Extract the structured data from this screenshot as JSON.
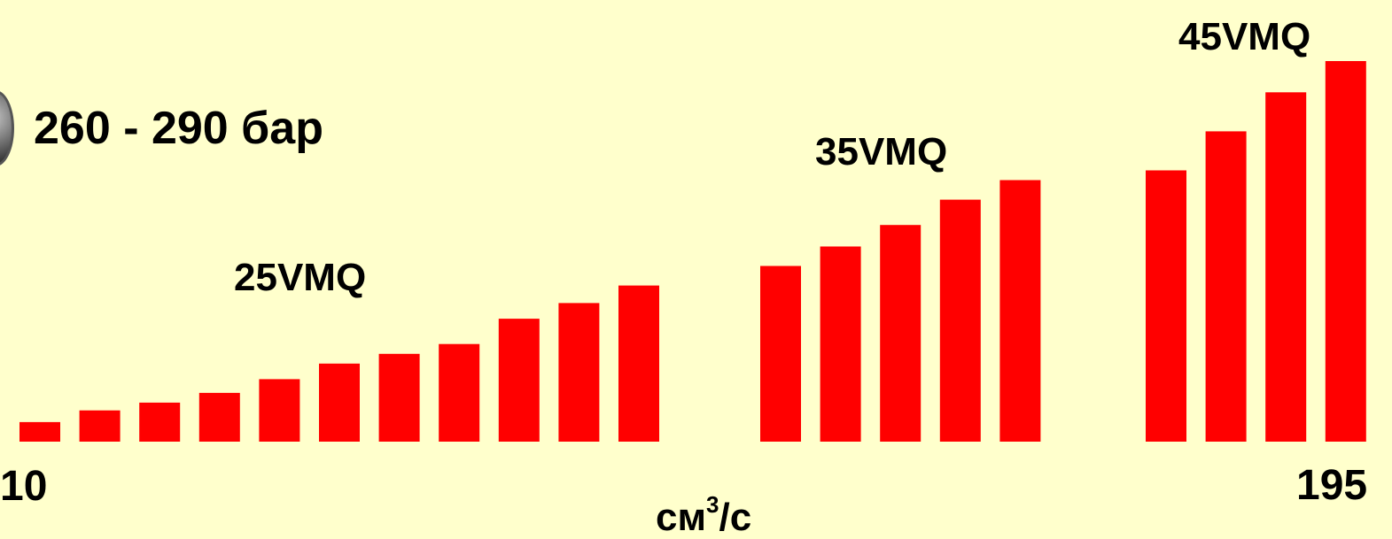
{
  "colors": {
    "background": "#FFFFCC",
    "bars": "#FF0000",
    "text": "#000000"
  },
  "labels": {
    "pressure": "260 - 290 бар",
    "x_min": "10",
    "x_max": "195",
    "unit_base": "см",
    "unit_sup": "3",
    "unit_tail": "/с"
  },
  "chart_data": {
    "type": "bar",
    "title": "",
    "series": [
      {
        "group": "25VMQ",
        "values": [
          10,
          16,
          20,
          25,
          32,
          40,
          45,
          50,
          63,
          71,
          80
        ]
      },
      {
        "group": "35VMQ",
        "values": [
          90,
          100,
          111,
          124,
          134
        ]
      },
      {
        "group": "45VMQ",
        "values": [
          139,
          159,
          179,
          195
        ]
      }
    ],
    "ylim": [
      0,
      200
    ],
    "grid": false,
    "legend": "none"
  }
}
